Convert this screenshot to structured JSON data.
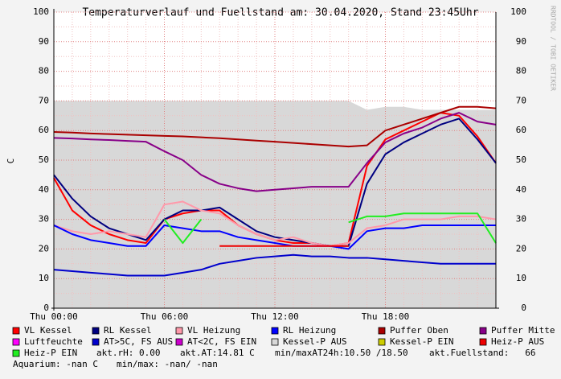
{
  "chart_data": {
    "type": "line",
    "title": "Temperaturverlauf und Fuellstand am: 30.04.2020, Stand 23:45Uhr",
    "y_label": "C",
    "watermark": "RRDTOOL / TOBI OETIKER",
    "x": [
      0,
      1,
      2,
      3,
      4,
      5,
      6,
      7,
      8,
      9,
      10,
      11,
      12,
      13,
      14,
      15,
      16,
      17,
      18,
      19,
      20,
      21,
      22,
      23,
      24
    ],
    "xlim": [
      0,
      24
    ],
    "xticks": [
      {
        "value": 0,
        "label": "Thu 00:00"
      },
      {
        "value": 6,
        "label": "Thu 06:00"
      },
      {
        "value": 12,
        "label": "Thu 12:00"
      },
      {
        "value": 18,
        "label": "Thu 18:00"
      }
    ],
    "ylim": [
      0,
      100
    ],
    "yticks": [
      0,
      10,
      20,
      30,
      40,
      50,
      60,
      70,
      80,
      90,
      100
    ],
    "grid": true,
    "series": [
      {
        "name": "VL Kessel",
        "color": "#ff0000",
        "values": [
          44,
          33,
          28,
          25,
          23,
          22,
          30,
          32,
          33,
          33,
          28,
          25,
          23,
          22,
          22,
          21,
          22,
          48,
          57,
          60,
          63,
          66,
          65,
          58,
          49
        ]
      },
      {
        "name": "RL Kessel",
        "color": "#000080",
        "values": [
          45,
          37,
          31,
          27,
          25,
          23,
          30,
          33,
          33,
          34,
          30,
          26,
          24,
          23,
          22,
          21,
          21,
          42,
          52,
          56,
          59,
          62,
          64,
          57,
          49
        ]
      },
      {
        "name": "VL Heizung",
        "color": "#ff99aa",
        "values": [
          28,
          26,
          25,
          26,
          25,
          24,
          35,
          36,
          33,
          32,
          28,
          25,
          23,
          24,
          22,
          21,
          22,
          27,
          28,
          30,
          30,
          30,
          31,
          31,
          30
        ]
      },
      {
        "name": "RL Heizung",
        "color": "#0000ff",
        "values": [
          28,
          25,
          23,
          22,
          21,
          21,
          28,
          27,
          26,
          26,
          24,
          23,
          22,
          21,
          21,
          21,
          20,
          26,
          27,
          27,
          28,
          28,
          28,
          28,
          28
        ]
      },
      {
        "name": "Puffer Oben",
        "color": "#aa0000",
        "values": [
          59.5,
          59.3,
          59,
          58.8,
          58.6,
          58.4,
          58.2,
          58,
          57.7,
          57.4,
          57,
          56.6,
          56.2,
          55.8,
          55.4,
          55,
          54.6,
          55,
          60,
          62,
          64,
          66,
          68,
          68,
          67.5
        ]
      },
      {
        "name": "Puffer Mitte",
        "color": "#880088",
        "values": [
          57.5,
          57.3,
          57,
          56.8,
          56.5,
          56.2,
          53,
          50,
          45,
          42,
          40.5,
          39.5,
          40,
          40.5,
          41,
          41,
          41,
          49,
          56,
          59,
          61,
          64,
          66,
          63,
          62
        ]
      },
      {
        "name": "Luftfeuchte",
        "color": "#ff00ff",
        "values": [
          null,
          null,
          null,
          null,
          null,
          null,
          null,
          null,
          null,
          null,
          null,
          null,
          null,
          null,
          null,
          null,
          null,
          null,
          null,
          null,
          null,
          null,
          null,
          null,
          null
        ]
      },
      {
        "name": "AT>5C, FS AUS",
        "color": "#0000cc",
        "values": [
          13,
          12.5,
          12,
          11.5,
          11,
          11,
          11,
          12,
          13,
          15,
          16,
          17,
          17.5,
          18,
          17.5,
          17.5,
          17,
          17,
          16.5,
          16,
          15.5,
          15,
          15,
          15,
          15
        ]
      },
      {
        "name": "AT<2C, FS EIN",
        "color": "#cc00cc",
        "values": [
          null,
          null,
          null,
          null,
          null,
          null,
          null,
          null,
          null,
          null,
          null,
          null,
          null,
          null,
          null,
          null,
          null,
          null,
          null,
          null,
          null,
          null,
          null,
          null,
          null
        ]
      },
      {
        "name": "Kessel-P AUS",
        "color": "#d8d8d8",
        "area": true,
        "values": [
          70,
          70,
          70,
          70,
          70,
          70,
          70,
          70,
          70,
          70,
          70,
          70,
          70,
          70,
          70,
          70,
          70,
          67,
          68,
          68,
          67,
          67,
          67,
          67,
          67
        ]
      },
      {
        "name": "Kessel-P EIN",
        "color": "#cccc00",
        "values": [
          null,
          null,
          null,
          null,
          null,
          null,
          null,
          null,
          null,
          null,
          null,
          null,
          null,
          null,
          null,
          null,
          null,
          null,
          null,
          null,
          null,
          null,
          null,
          null,
          null
        ]
      },
      {
        "name": "Heiz-P AUS",
        "color": "#ee0000",
        "values": [
          null,
          null,
          null,
          null,
          null,
          null,
          null,
          null,
          null,
          21,
          21,
          21,
          21,
          21,
          21,
          21,
          21,
          null,
          null,
          null,
          null,
          null,
          null,
          null,
          null
        ]
      },
      {
        "name": "Heiz-P EIN",
        "color": "#22ee22",
        "values": [
          22,
          null,
          null,
          null,
          null,
          null,
          30,
          22,
          30,
          null,
          null,
          null,
          null,
          null,
          null,
          null,
          29,
          31,
          31,
          32,
          32,
          32,
          32,
          32,
          22
        ]
      }
    ],
    "notes": [
      "akt.rH: 0.00",
      "akt.AT:14.81 C",
      "min/maxAT24h:10.50 /18.50",
      "akt.Fuellstand:   66",
      "Aquarium: -nan C",
      "min/max: -nan/ -nan"
    ]
  }
}
